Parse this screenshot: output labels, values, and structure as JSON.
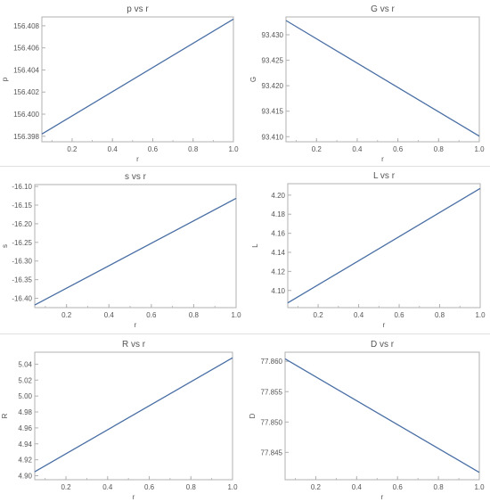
{
  "chart_data": [
    {
      "type": "line",
      "title": "p vs r",
      "xlabel": "r",
      "ylabel": "p",
      "x": [
        0.05,
        1.0
      ],
      "y": [
        156.3982,
        156.4086
      ],
      "xlim": [
        0.05,
        1.0
      ],
      "ylim": [
        156.3975,
        156.4088
      ],
      "xticks": [
        "0.2",
        "0.4",
        "0.6",
        "0.8",
        "1.0"
      ],
      "yticks": [
        "156.398",
        "156.400",
        "156.402",
        "156.404",
        "156.406",
        "156.408"
      ]
    },
    {
      "type": "line",
      "title": "G vs r",
      "xlabel": "r",
      "ylabel": "G",
      "x": [
        0.05,
        1.0
      ],
      "y": [
        93.4328,
        93.4101
      ],
      "xlim": [
        0.05,
        1.0
      ],
      "ylim": [
        93.409,
        93.4335
      ],
      "xticks": [
        "0.2",
        "0.4",
        "0.6",
        "0.8",
        "1.0"
      ],
      "yticks": [
        "93.410",
        "93.415",
        "93.420",
        "93.425",
        "93.430"
      ]
    },
    {
      "type": "line",
      "title": "s vs r",
      "xlabel": "r",
      "ylabel": "s",
      "x": [
        0.05,
        1.0
      ],
      "y": [
        -16.418,
        -16.132
      ],
      "xlim": [
        0.05,
        1.0
      ],
      "ylim": [
        -16.425,
        -16.095
      ],
      "xticks": [
        "0.2",
        "0.4",
        "0.6",
        "0.8",
        "1.0"
      ],
      "yticks": [
        "-16.10",
        "-16.15",
        "-16.20",
        "-16.25",
        "-16.30",
        "-16.35",
        "-16.40"
      ]
    },
    {
      "type": "line",
      "title": "L vs r",
      "xlabel": "r",
      "ylabel": "L",
      "x": [
        0.05,
        1.0
      ],
      "y": [
        4.087,
        4.207
      ],
      "xlim": [
        0.05,
        1.0
      ],
      "ylim": [
        4.082,
        4.212
      ],
      "xticks": [
        "0.2",
        "0.4",
        "0.6",
        "0.8",
        "1.0"
      ],
      "yticks": [
        "4.10",
        "4.12",
        "4.14",
        "4.16",
        "4.18",
        "4.20"
      ]
    },
    {
      "type": "line",
      "title": "R vs r",
      "xlabel": "r",
      "ylabel": "R",
      "x": [
        0.05,
        1.0
      ],
      "y": [
        4.905,
        5.048
      ],
      "xlim": [
        0.05,
        1.0
      ],
      "ylim": [
        4.895,
        5.055
      ],
      "xticks": [
        "0.2",
        "0.4",
        "0.6",
        "0.8",
        "1.0"
      ],
      "yticks": [
        "4.90",
        "4.92",
        "4.94",
        "4.96",
        "4.98",
        "5.00",
        "5.02",
        "5.04"
      ]
    },
    {
      "type": "line",
      "title": "D vs r",
      "xlabel": "r",
      "ylabel": "D",
      "x": [
        0.05,
        1.0
      ],
      "y": [
        77.8604,
        77.8417
      ],
      "xlim": [
        0.05,
        1.0
      ],
      "ylim": [
        77.8405,
        77.8615
      ],
      "xticks": [
        "0.2",
        "0.4",
        "0.6",
        "0.8",
        "1.0"
      ],
      "yticks": [
        "77.845",
        "77.850",
        "77.855",
        "77.860"
      ]
    }
  ],
  "style": {
    "line_color": "#4a6fa5",
    "axis_color": "#b0b0b0",
    "text_color": "#555555",
    "grid": false
  }
}
